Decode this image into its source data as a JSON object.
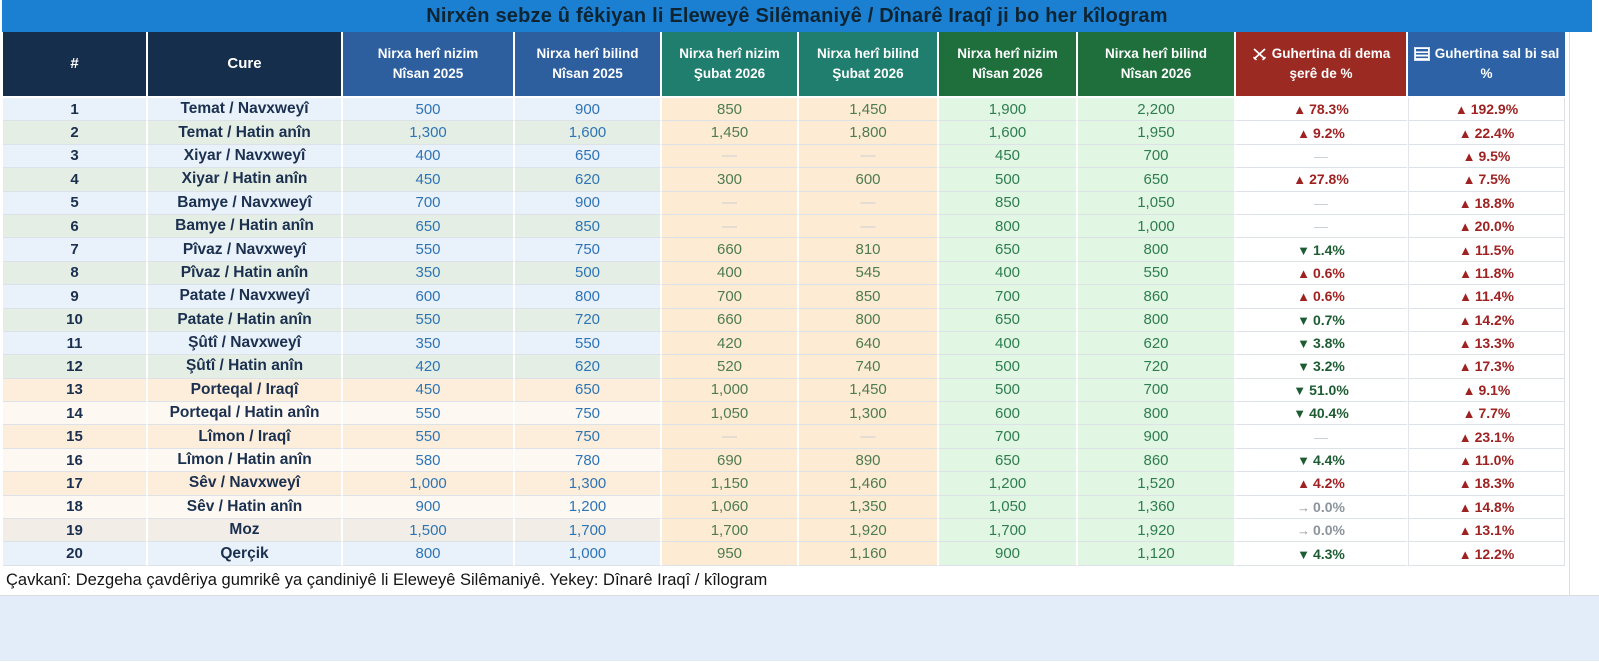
{
  "chart_data": {
    "type": "table",
    "title": "Nirxên sebze û fêkiyan li Eleweyê Silêmaniyê / Dînarê Iraqî ji bo her kîlogram",
    "source_note": "Çavkanî: Dezgeha çavdêriya gumrikê ya çandiniyê li Eleweyê Silêmaniyê. Yekey: Dînarê Iraqî / kîlogram",
    "columns": [
      {
        "label": "#"
      },
      {
        "label": "Cure"
      },
      {
        "line1": "Nirxa herî nizim",
        "line2": "Nîsan 2025"
      },
      {
        "line1": "Nirxa herî bilind",
        "line2": "Nîsan 2025"
      },
      {
        "line1": "Nirxa herî nizim",
        "line2": "Şubat 2026"
      },
      {
        "line1": "Nirxa herî bilind",
        "line2": "Şubat 2026"
      },
      {
        "line1": "Nirxa herî nizim",
        "line2": "Nîsan 2026"
      },
      {
        "line1": "Nirxa herî bilind",
        "line2": "Nîsan 2026"
      },
      {
        "icon": "crossed-swords",
        "line1": "Guhertina di dema",
        "line2": "şerê de %"
      },
      {
        "icon": "calendar-grid",
        "line1": "Guhertina sal bi sal",
        "line2": "%"
      }
    ],
    "rows": [
      {
        "n": "1",
        "name": "Temat / Navxweyî",
        "band": "blue",
        "values": [
          "500",
          "900",
          "850",
          "1,450",
          "1,900",
          "2,200"
        ],
        "war": {
          "dir": "up",
          "val": "78.3%"
        },
        "year": {
          "dir": "up",
          "val": "192.9%"
        }
      },
      {
        "n": "2",
        "name": "Temat / Hatin anîn",
        "band": "green",
        "values": [
          "1,300",
          "1,600",
          "1,450",
          "1,800",
          "1,600",
          "1,950"
        ],
        "war": {
          "dir": "up",
          "val": "9.2%"
        },
        "year": {
          "dir": "up",
          "val": "22.4%"
        }
      },
      {
        "n": "3",
        "name": "Xiyar / Navxweyî",
        "band": "blue",
        "values": [
          "400",
          "650",
          null,
          null,
          "450",
          "700"
        ],
        "war": {
          "dir": "none",
          "val": ""
        },
        "year": {
          "dir": "up",
          "val": "9.5%"
        }
      },
      {
        "n": "4",
        "name": "Xiyar / Hatin anîn",
        "band": "green",
        "values": [
          "450",
          "620",
          "300",
          "600",
          "500",
          "650"
        ],
        "war": {
          "dir": "up",
          "val": "27.8%"
        },
        "year": {
          "dir": "up",
          "val": "7.5%"
        }
      },
      {
        "n": "5",
        "name": "Bamye / Navxweyî",
        "band": "blue",
        "values": [
          "700",
          "900",
          null,
          null,
          "850",
          "1,050"
        ],
        "war": {
          "dir": "none",
          "val": ""
        },
        "year": {
          "dir": "up",
          "val": "18.8%"
        }
      },
      {
        "n": "6",
        "name": "Bamye / Hatin anîn",
        "band": "green",
        "values": [
          "650",
          "850",
          null,
          null,
          "800",
          "1,000"
        ],
        "war": {
          "dir": "none",
          "val": ""
        },
        "year": {
          "dir": "up",
          "val": "20.0%"
        }
      },
      {
        "n": "7",
        "name": "Pîvaz / Navxweyî",
        "band": "blue",
        "values": [
          "550",
          "750",
          "660",
          "810",
          "650",
          "800"
        ],
        "war": {
          "dir": "down",
          "val": "1.4%"
        },
        "year": {
          "dir": "up",
          "val": "11.5%"
        }
      },
      {
        "n": "8",
        "name": "Pîvaz / Hatin anîn",
        "band": "green",
        "values": [
          "350",
          "500",
          "400",
          "545",
          "400",
          "550"
        ],
        "war": {
          "dir": "up",
          "val": "0.6%"
        },
        "year": {
          "dir": "up",
          "val": "11.8%"
        }
      },
      {
        "n": "9",
        "name": "Patate / Navxweyî",
        "band": "blue",
        "values": [
          "600",
          "800",
          "700",
          "850",
          "700",
          "860"
        ],
        "war": {
          "dir": "up",
          "val": "0.6%"
        },
        "year": {
          "dir": "up",
          "val": "11.4%"
        }
      },
      {
        "n": "10",
        "name": "Patate / Hatin anîn",
        "band": "green",
        "values": [
          "550",
          "720",
          "660",
          "800",
          "650",
          "800"
        ],
        "war": {
          "dir": "down",
          "val": "0.7%"
        },
        "year": {
          "dir": "up",
          "val": "14.2%"
        }
      },
      {
        "n": "11",
        "name": "Şûtî / Navxweyî",
        "band": "blue",
        "values": [
          "350",
          "550",
          "420",
          "640",
          "400",
          "620"
        ],
        "war": {
          "dir": "down",
          "val": "3.8%"
        },
        "year": {
          "dir": "up",
          "val": "13.3%"
        }
      },
      {
        "n": "12",
        "name": "Şûtî / Hatin anîn",
        "band": "green",
        "values": [
          "420",
          "620",
          "520",
          "740",
          "500",
          "720"
        ],
        "war": {
          "dir": "down",
          "val": "3.2%"
        },
        "year": {
          "dir": "up",
          "val": "17.3%"
        }
      },
      {
        "n": "13",
        "name": "Porteqal / Iraqî",
        "band": "peach",
        "values": [
          "450",
          "650",
          "1,000",
          "1,450",
          "500",
          "700"
        ],
        "war": {
          "dir": "down",
          "val": "51.0%"
        },
        "year": {
          "dir": "up",
          "val": "9.1%"
        }
      },
      {
        "n": "14",
        "name": "Porteqal / Hatin anîn",
        "band": "white",
        "values": [
          "550",
          "750",
          "1,050",
          "1,300",
          "600",
          "800"
        ],
        "war": {
          "dir": "down",
          "val": "40.4%"
        },
        "year": {
          "dir": "up",
          "val": "7.7%"
        }
      },
      {
        "n": "15",
        "name": "Lîmon / Iraqî",
        "band": "peach",
        "values": [
          "550",
          "750",
          null,
          null,
          "700",
          "900"
        ],
        "war": {
          "dir": "none",
          "val": ""
        },
        "year": {
          "dir": "up",
          "val": "23.1%"
        }
      },
      {
        "n": "16",
        "name": "Lîmon / Hatin anîn",
        "band": "white",
        "values": [
          "580",
          "780",
          "690",
          "890",
          "650",
          "860"
        ],
        "war": {
          "dir": "down",
          "val": "4.4%"
        },
        "year": {
          "dir": "up",
          "val": "11.0%"
        }
      },
      {
        "n": "17",
        "name": "Sêv / Navxweyî",
        "band": "peach",
        "values": [
          "1,000",
          "1,300",
          "1,150",
          "1,460",
          "1,200",
          "1,520"
        ],
        "war": {
          "dir": "up",
          "val": "4.2%"
        },
        "year": {
          "dir": "up",
          "val": "18.3%"
        }
      },
      {
        "n": "18",
        "name": "Sêv / Hatin anîn",
        "band": "white",
        "values": [
          "900",
          "1,200",
          "1,060",
          "1,350",
          "1,050",
          "1,360"
        ],
        "war": {
          "dir": "zero",
          "val": "0.0%"
        },
        "year": {
          "dir": "up",
          "val": "14.8%"
        }
      },
      {
        "n": "19",
        "name": "Moz",
        "band": "pale",
        "values": [
          "1,500",
          "1,700",
          "1,700",
          "1,920",
          "1,700",
          "1,920"
        ],
        "war": {
          "dir": "zero",
          "val": "0.0%"
        },
        "year": {
          "dir": "up",
          "val": "13.1%"
        }
      },
      {
        "n": "20",
        "name": "Qerçik",
        "band": "blue",
        "values": [
          "800",
          "1,000",
          "950",
          "1,160",
          "900",
          "1,120"
        ],
        "war": {
          "dir": "down",
          "val": "4.3%"
        },
        "year": {
          "dir": "up",
          "val": "12.2%"
        }
      }
    ]
  },
  "colors": {
    "title_bar": "#1b80d2",
    "header_navy": "#152e4b",
    "header_blue": "#2d5f9f",
    "header_teal": "#1f7e6d",
    "header_green": "#1e6f3c",
    "header_red": "#9b2a23",
    "header_year_blue": "#2d63a6",
    "band_blue": "#e9f1fa",
    "band_green": "#e4eee5",
    "band_peach": "#fdeedc",
    "col_subat_bg": "#fdecd3",
    "col_nisan26_bg": "#e2f6e4",
    "value_blue": "#2e74b5",
    "value_sage": "#4e7b52",
    "value_green": "#2e7d4f",
    "change_up": "#9f2222",
    "change_down": "#1d5c33",
    "change_zero": "#8b949c"
  }
}
